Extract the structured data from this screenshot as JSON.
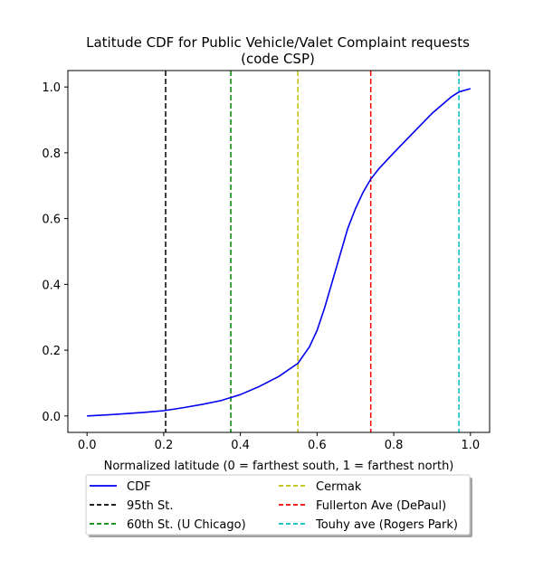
{
  "chart_data": {
    "type": "line",
    "title": "Latitude CDF for Public Vehicle/Valet Complaint  requests",
    "subtitle": "(code CSP)",
    "xlabel": "Normalized latitude (0 = farthest south, 1 = farthest north)",
    "ylabel": "",
    "xlim": [
      -0.05,
      1.05
    ],
    "ylim": [
      -0.05,
      1.05
    ],
    "xticks": [
      0.0,
      0.2,
      0.4,
      0.6,
      0.8,
      1.0
    ],
    "xtick_labels": [
      "0.0",
      "0.2",
      "0.4",
      "0.6",
      "0.8",
      "1.0"
    ],
    "yticks": [
      0.0,
      0.2,
      0.4,
      0.6,
      0.8,
      1.0
    ],
    "ytick_labels": [
      "0.0",
      "0.2",
      "0.4",
      "0.6",
      "0.8",
      "1.0"
    ],
    "grid": false,
    "legend_placement": "below-center",
    "series": [
      {
        "name": "CDF",
        "color": "#0000ee",
        "x": [
          0.0,
          0.05,
          0.1,
          0.15,
          0.2,
          0.25,
          0.3,
          0.35,
          0.4,
          0.45,
          0.5,
          0.55,
          0.58,
          0.6,
          0.62,
          0.64,
          0.66,
          0.68,
          0.7,
          0.72,
          0.74,
          0.76,
          0.8,
          0.85,
          0.9,
          0.95,
          0.97,
          1.0
        ],
        "y": [
          0.0,
          0.003,
          0.007,
          0.011,
          0.016,
          0.025,
          0.035,
          0.047,
          0.065,
          0.09,
          0.12,
          0.16,
          0.21,
          0.26,
          0.33,
          0.41,
          0.49,
          0.57,
          0.63,
          0.68,
          0.72,
          0.75,
          0.8,
          0.86,
          0.92,
          0.97,
          0.985,
          0.995
        ]
      }
    ],
    "vlines": [
      {
        "name": "95th St.",
        "x": 0.205,
        "color": "#000000"
      },
      {
        "name": "60th St. (U Chicago)",
        "x": 0.375,
        "color": "#008000"
      },
      {
        "name": "Cermak",
        "x": 0.55,
        "color": "#bfbf00"
      },
      {
        "name": "Fullerton Ave (DePaul)",
        "x": 0.74,
        "color": "#ff0000"
      },
      {
        "name": "Touhy ave (Rogers Park)",
        "x": 0.97,
        "color": "#00bfbf"
      }
    ]
  }
}
